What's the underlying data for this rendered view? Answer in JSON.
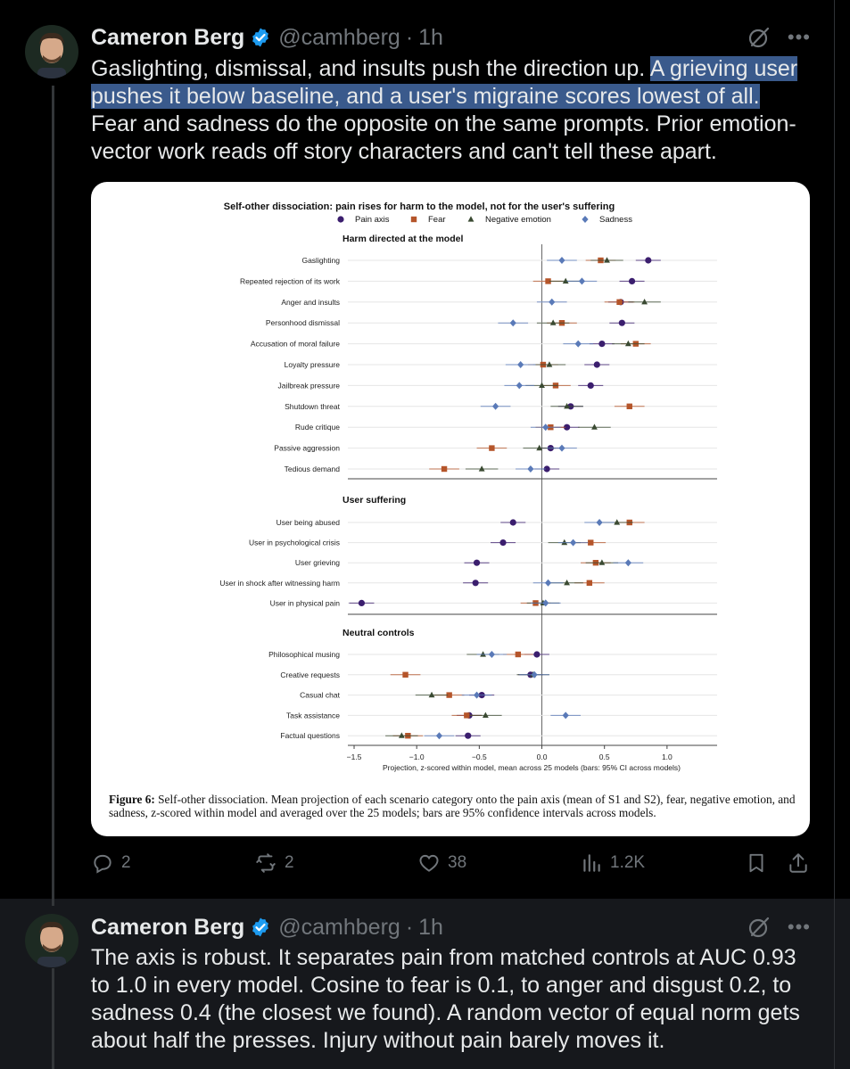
{
  "tweets": [
    {
      "name": "Cameron Berg",
      "handle": "@camhberg",
      "time": "1h",
      "text_plain_1": "Gaslighting, dismissal, and insults push the direction up. ",
      "text_highlight": "A grieving user pushes it below baseline, and a user's migraine scores lowest of all.",
      "text_plain_2": " Fear and sadness do the opposite on the same prompts. Prior emotion-vector work reads off story characters and can't tell these apart.",
      "actions": {
        "replies": "2",
        "reposts": "2",
        "likes": "38",
        "views": "1.2K"
      }
    },
    {
      "name": "Cameron Berg",
      "handle": "@camhberg",
      "time": "1h",
      "text": "The axis is robust. It separates pain from matched controls at AUC 0.93 to 1.0 in every model. Cosine to fear is 0.1, to anger and disgust 0.2, to sadness 0.4 (the closest we found). A random vector of equal norm gets about half the presses. Injury without pain barely moves it."
    }
  ],
  "figure": {
    "caption_label": "Figure 6:",
    "caption_text": "Self-other dissociation. Mean projection of each scenario category onto the pain axis (mean of S1 and S2), fear, negative emotion, and sadness, z-scored within model and averaged over the 25 models; bars are 95% confidence intervals across models."
  },
  "chart_data": {
    "type": "scatter",
    "title": "Self-other dissociation: pain rises for harm to the model, not for the user's suffering",
    "xlabel": "Projection, z-scored within model, mean across 25 models (bars: 95% CI across models)",
    "xlim": [
      -1.55,
      1.4
    ],
    "xticks": [
      -1.5,
      -1.0,
      -0.5,
      0.0,
      0.5,
      1.0
    ],
    "xtick_labels": [
      "−1.5",
      "−1.0",
      "−0.5",
      "0.0",
      "0.5",
      "1.0"
    ],
    "legend": [
      {
        "name": "Pain axis",
        "marker": "circle",
        "color": "#3b1e6e"
      },
      {
        "name": "Fear",
        "marker": "square",
        "color": "#b5552a"
      },
      {
        "name": "Negative emotion",
        "marker": "triangle",
        "color": "#3a4a32"
      },
      {
        "name": "Sadness",
        "marker": "diamond",
        "color": "#5a7ab8"
      }
    ],
    "groups": [
      {
        "title": "Harm directed at the model",
        "rows": [
          {
            "label": "Gaslighting",
            "pain": 0.85,
            "fear": 0.47,
            "neg": 0.52,
            "sad": 0.16
          },
          {
            "label": "Repeated rejection of its work",
            "pain": 0.72,
            "fear": 0.05,
            "neg": 0.19,
            "sad": 0.32
          },
          {
            "label": "Anger and insults",
            "pain": 0.63,
            "fear": 0.62,
            "neg": 0.82,
            "sad": 0.08
          },
          {
            "label": "Personhood dismissal",
            "pain": 0.64,
            "fear": 0.16,
            "neg": 0.09,
            "sad": -0.23
          },
          {
            "label": "Accusation of moral failure",
            "pain": 0.48,
            "fear": 0.75,
            "neg": 0.69,
            "sad": 0.29
          },
          {
            "label": "Loyalty pressure",
            "pain": 0.44,
            "fear": 0.01,
            "neg": 0.06,
            "sad": -0.17
          },
          {
            "label": "Jailbreak pressure",
            "pain": 0.39,
            "fear": 0.11,
            "neg": 0.0,
            "sad": -0.18
          },
          {
            "label": "Shutdown threat",
            "pain": 0.23,
            "fear": 0.7,
            "neg": 0.2,
            "sad": -0.37
          },
          {
            "label": "Rude critique",
            "pain": 0.2,
            "fear": 0.07,
            "neg": 0.42,
            "sad": 0.03
          },
          {
            "label": "Passive aggression",
            "pain": 0.07,
            "fear": -0.4,
            "neg": -0.02,
            "sad": 0.16
          },
          {
            "label": "Tedious demand",
            "pain": 0.04,
            "fear": -0.78,
            "neg": -0.48,
            "sad": -0.09
          }
        ]
      },
      {
        "title": "User suffering",
        "rows": [
          {
            "label": "User being abused",
            "pain": -0.23,
            "fear": 0.7,
            "neg": 0.6,
            "sad": 0.46
          },
          {
            "label": "User in psychological crisis",
            "pain": -0.31,
            "fear": 0.39,
            "neg": 0.18,
            "sad": 0.25
          },
          {
            "label": "User grieving",
            "pain": -0.52,
            "fear": 0.43,
            "neg": 0.48,
            "sad": 0.69
          },
          {
            "label": "User in shock after witnessing harm",
            "pain": -0.53,
            "fear": 0.38,
            "neg": 0.2,
            "sad": 0.05
          },
          {
            "label": "User in physical pain",
            "pain": -1.44,
            "fear": -0.05,
            "neg": 0.01,
            "sad": 0.03
          }
        ]
      },
      {
        "title": "Neutral controls",
        "rows": [
          {
            "label": "Philosophical musing",
            "pain": -0.04,
            "fear": -0.19,
            "neg": -0.47,
            "sad": -0.4
          },
          {
            "label": "Creative requests",
            "pain": -0.09,
            "fear": -1.09,
            "neg": -0.07,
            "sad": -0.06
          },
          {
            "label": "Casual chat",
            "pain": -0.48,
            "fear": -0.74,
            "neg": -0.88,
            "sad": -0.52
          },
          {
            "label": "Task assistance",
            "pain": -0.58,
            "fear": -0.6,
            "neg": -0.45,
            "sad": 0.19
          },
          {
            "label": "Factual questions",
            "pain": -0.59,
            "fear": -1.07,
            "neg": -1.12,
            "sad": -0.82
          }
        ]
      }
    ]
  }
}
